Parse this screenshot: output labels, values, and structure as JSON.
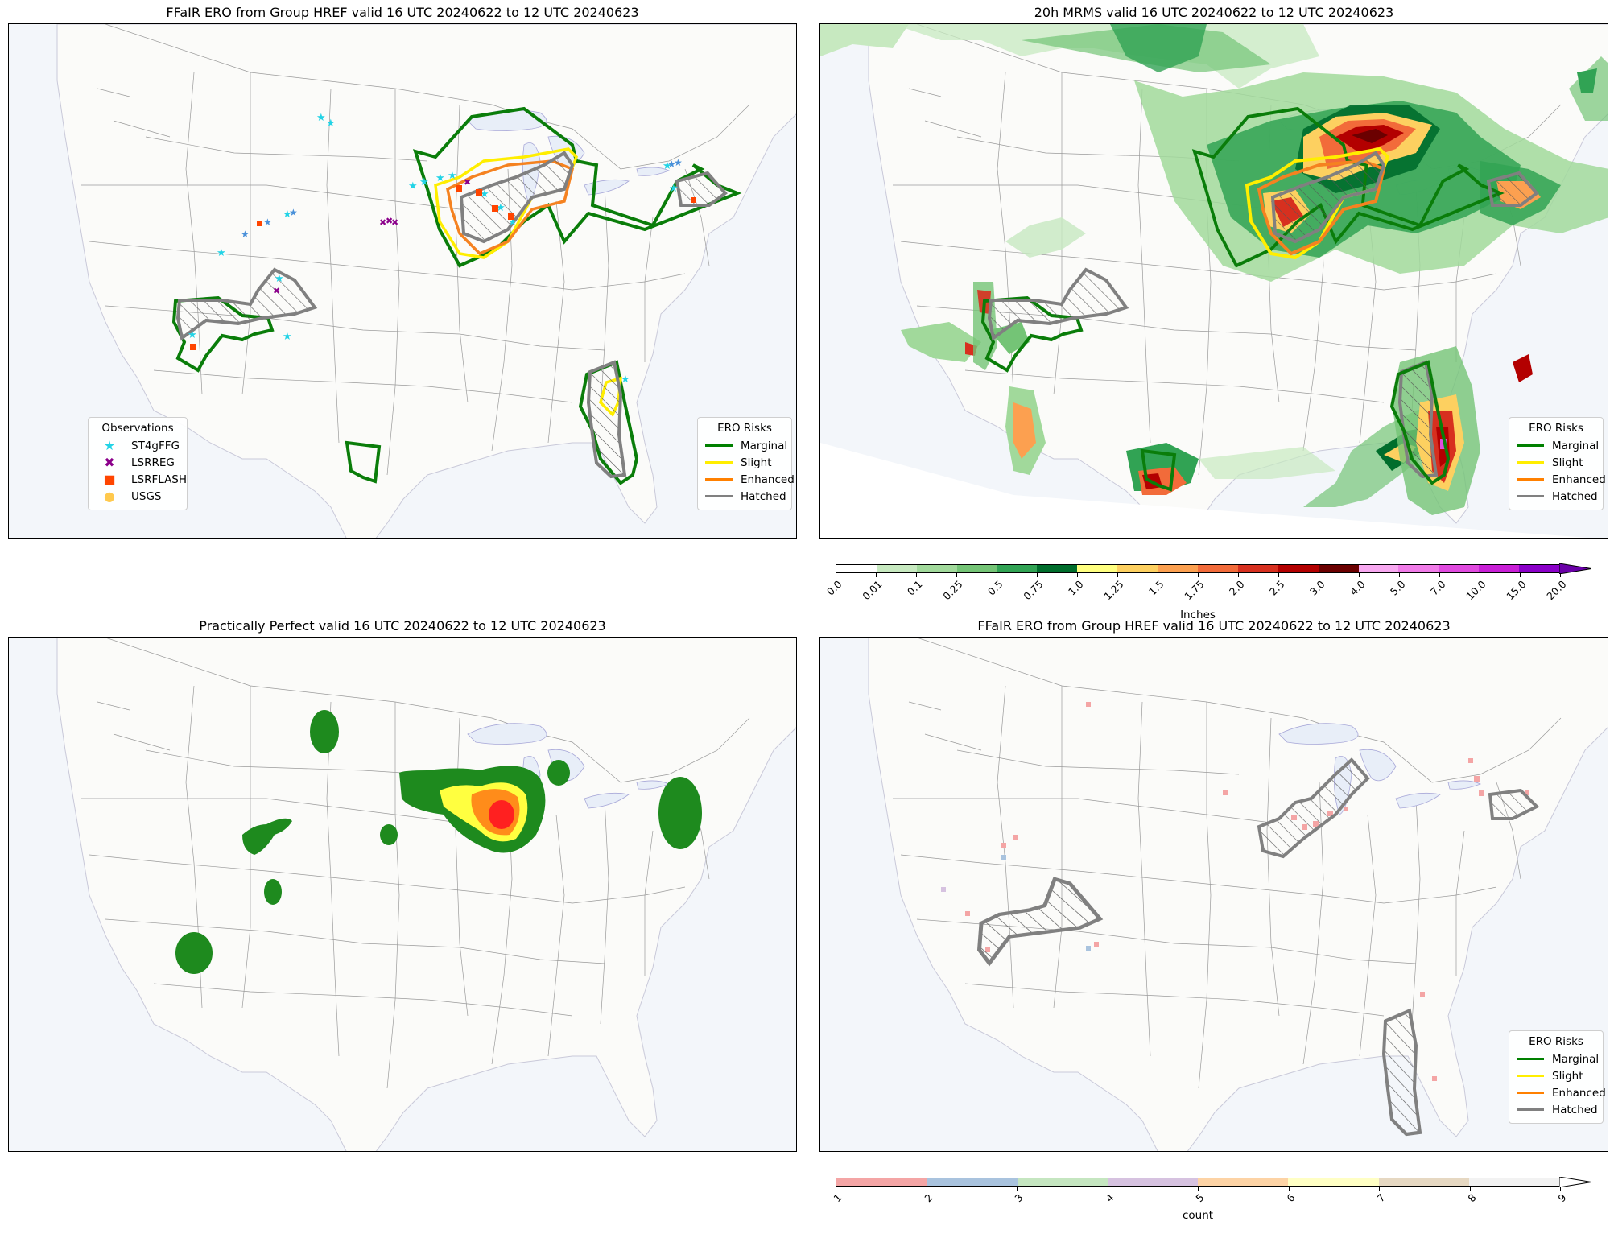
{
  "panels": [
    {
      "title": "FFaIR ERO from Group HREF valid 16 UTC 20240622 to 12 UTC 20240623"
    },
    {
      "title": "20h MRMS valid 16 UTC 20240622 to 12 UTC 20240623"
    },
    {
      "title": "Practically Perfect valid 16 UTC 20240622 to 12 UTC 20240623"
    },
    {
      "title": "FFaIR ERO from Group HREF valid 16 UTC 20240622 to 12 UTC 20240623"
    }
  ],
  "obs_legend": {
    "title": "Observations",
    "items": [
      {
        "label": "ST4gFFG",
        "symbol": "★",
        "color": "#22d3e6"
      },
      {
        "label": "LSRREG",
        "symbol": "✖",
        "color": "#8b008b"
      },
      {
        "label": "LSRFLASH",
        "symbol": "■",
        "color": "#ff4500"
      },
      {
        "label": "USGS",
        "symbol": "●",
        "color": "#ffc94d"
      }
    ]
  },
  "ero_legend": {
    "title": "ERO Risks",
    "items": [
      {
        "label": "Marginal",
        "color": "#008000"
      },
      {
        "label": "Slight",
        "color": "#ffee00"
      },
      {
        "label": "Enhanced",
        "color": "#ff8000"
      },
      {
        "label": "Hatched",
        "color": "#808080"
      }
    ]
  },
  "precip_colorbar": {
    "label": "Inches",
    "ticks": [
      "0.0",
      "0.01",
      "0.1",
      "0.25",
      "0.5",
      "0.75",
      "1.0",
      "1.25",
      "1.5",
      "1.75",
      "2.0",
      "2.5",
      "3.0",
      "4.0",
      "5.0",
      "7.0",
      "10.0",
      "15.0",
      "20.0"
    ],
    "colors": [
      "#ffffff",
      "#c7e9c0",
      "#a1d99b",
      "#74c476",
      "#31a354",
      "#006d2c",
      "#ffff80",
      "#fdd060",
      "#fca050",
      "#f26b3a",
      "#d7301f",
      "#b30000",
      "#6b0000",
      "#f7a8f0",
      "#f07be8",
      "#e04adf",
      "#c81fd6",
      "#8a00c8"
    ],
    "extend_color": "#6a00a8"
  },
  "count_colorbar": {
    "label": "count",
    "ticks": [
      "1",
      "2",
      "3",
      "4",
      "5",
      "6",
      "7",
      "8",
      "9"
    ],
    "colors": [
      "#f4a5a5",
      "#a9c3de",
      "#c5e6c0",
      "#d6c2e0",
      "#fdd3a5",
      "#ffffc4",
      "#e6d8c2",
      "#f2f2f2"
    ]
  }
}
